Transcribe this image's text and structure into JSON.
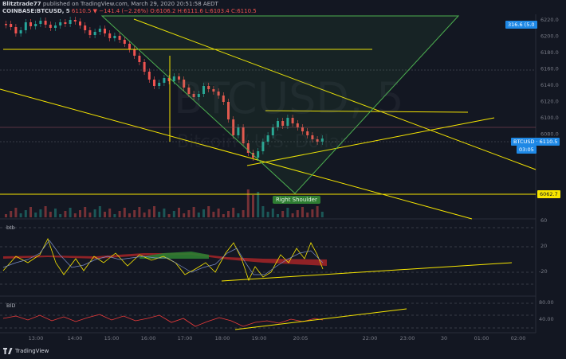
{
  "header": {
    "author": "Blitztrade77",
    "published": "published on TradingView.com, March 29, 2020 20:51:58 AEDT",
    "symbol": "COINBASE:BTCUSD, 5",
    "change": "6110.5 ▼ −141.4 (−2.26%)",
    "ohlc": "O:6106.2 H:6111.6 L:6103.4 C:6110.5"
  },
  "watermark": {
    "symbol": "BTCUSD, 5",
    "name": "Bitcoin / U.S. Dollar"
  },
  "price_axis": {
    "ticks": [
      "6220.0",
      "6200.0",
      "6180.0",
      "6160.0",
      "6140.0",
      "6120.0",
      "6100.0",
      "6080.0"
    ]
  },
  "time_axis": {
    "ticks": [
      "13:00",
      "14:00",
      "15:00",
      "16:00",
      "17:00",
      "18:00",
      "19:00",
      "20:05",
      "22:00",
      "23:00",
      "30",
      "01:00",
      "02:00"
    ]
  },
  "badges": {
    "top": "316.6 (5.0",
    "price": "BTCUSD · 6110.5",
    "timer": "03:05",
    "level": "6062.7"
  },
  "annotation": {
    "right_shoulder": "Right Shoulder"
  },
  "indicator1": {
    "name": "btb",
    "ticks": [
      "60",
      "20",
      "-20"
    ]
  },
  "indicator2": {
    "name": "BID",
    "ticks": [
      "80.00",
      "40.00"
    ]
  },
  "brand": "TradingView",
  "colors": {
    "bg": "#131722",
    "up": "#26a69a",
    "down": "#ef5350",
    "trend": "#f7e600",
    "channel": "#4caf50"
  }
}
